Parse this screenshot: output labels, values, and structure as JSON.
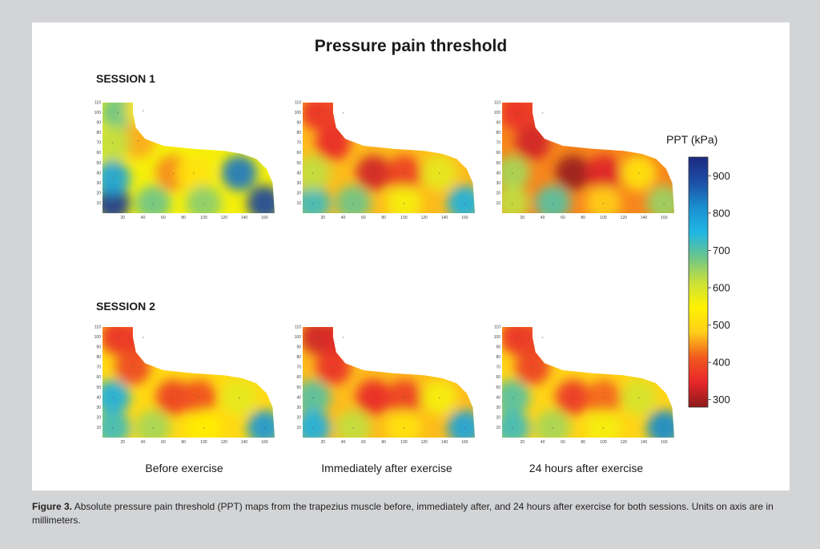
{
  "chart_data": {
    "type": "heatmap",
    "title": "Pressure pain threshold",
    "sessions": [
      "SESSION 1",
      "SESSION 2"
    ],
    "conditions": [
      "Before exercise",
      "Immediately after exercise",
      "24 hours after exercise"
    ],
    "x_ticks": [
      20,
      40,
      60,
      80,
      100,
      120,
      140,
      160
    ],
    "y_ticks": [
      10,
      20,
      30,
      40,
      50,
      60,
      70,
      80,
      90,
      100,
      110
    ],
    "colorbar": {
      "label": "PPT (kPa)",
      "ticks": [
        300,
        400,
        500,
        600,
        700,
        800,
        900
      ],
      "range": [
        280,
        950
      ],
      "colors": [
        "#8b1a1a",
        "#e8262a",
        "#f25a1e",
        "#ffcf1a",
        "#fff200",
        "#c9e03a",
        "#6cc58b",
        "#1fb6e3",
        "#1a8fd0",
        "#1d4fa6",
        "#1c2a80"
      ]
    },
    "maps": [
      {
        "session": "SESSION 1",
        "condition": "Before exercise",
        "base": 560,
        "points": [
          {
            "x": 10,
            "y": 10,
            "v": 920
          },
          {
            "x": 10,
            "y": 35,
            "v": 780
          },
          {
            "x": 15,
            "y": 100,
            "v": 680
          },
          {
            "x": 40,
            "y": 102,
            "v": 520
          },
          {
            "x": 35,
            "y": 72,
            "v": 460
          },
          {
            "x": 70,
            "y": 40,
            "v": 440
          },
          {
            "x": 90,
            "y": 40,
            "v": 520
          },
          {
            "x": 135,
            "y": 40,
            "v": 840
          },
          {
            "x": 160,
            "y": 10,
            "v": 900
          },
          {
            "x": 50,
            "y": 10,
            "v": 680
          },
          {
            "x": 100,
            "y": 10,
            "v": 660
          },
          {
            "x": 10,
            "y": 70,
            "v": 620
          }
        ]
      },
      {
        "session": "SESSION 1",
        "condition": "Immediately after exercise",
        "base": 470,
        "points": [
          {
            "x": 15,
            "y": 100,
            "v": 360
          },
          {
            "x": 40,
            "y": 100,
            "v": 380
          },
          {
            "x": 30,
            "y": 70,
            "v": 350
          },
          {
            "x": 70,
            "y": 40,
            "v": 330
          },
          {
            "x": 100,
            "y": 40,
            "v": 380
          },
          {
            "x": 10,
            "y": 10,
            "v": 720
          },
          {
            "x": 10,
            "y": 40,
            "v": 620
          },
          {
            "x": 50,
            "y": 10,
            "v": 680
          },
          {
            "x": 160,
            "y": 10,
            "v": 760
          },
          {
            "x": 135,
            "y": 40,
            "v": 580
          },
          {
            "x": 100,
            "y": 10,
            "v": 560
          }
        ]
      },
      {
        "session": "SESSION 1",
        "condition": "24 hours after exercise",
        "base": 440,
        "points": [
          {
            "x": 15,
            "y": 100,
            "v": 360
          },
          {
            "x": 40,
            "y": 100,
            "v": 380
          },
          {
            "x": 30,
            "y": 70,
            "v": 330
          },
          {
            "x": 70,
            "y": 40,
            "v": 290
          },
          {
            "x": 100,
            "y": 40,
            "v": 340
          },
          {
            "x": 10,
            "y": 40,
            "v": 640
          },
          {
            "x": 10,
            "y": 10,
            "v": 620
          },
          {
            "x": 50,
            "y": 10,
            "v": 700
          },
          {
            "x": 160,
            "y": 10,
            "v": 650
          },
          {
            "x": 135,
            "y": 40,
            "v": 520
          },
          {
            "x": 100,
            "y": 10,
            "v": 480
          }
        ]
      },
      {
        "session": "SESSION 2",
        "condition": "Before exercise",
        "base": 500,
        "points": [
          {
            "x": 15,
            "y": 100,
            "v": 360
          },
          {
            "x": 40,
            "y": 100,
            "v": 370
          },
          {
            "x": 30,
            "y": 70,
            "v": 390
          },
          {
            "x": 70,
            "y": 40,
            "v": 380
          },
          {
            "x": 95,
            "y": 40,
            "v": 400
          },
          {
            "x": 10,
            "y": 40,
            "v": 760
          },
          {
            "x": 10,
            "y": 10,
            "v": 720
          },
          {
            "x": 50,
            "y": 10,
            "v": 640
          },
          {
            "x": 160,
            "y": 10,
            "v": 800
          },
          {
            "x": 135,
            "y": 40,
            "v": 580
          },
          {
            "x": 100,
            "y": 10,
            "v": 540
          }
        ]
      },
      {
        "session": "SESSION 2",
        "condition": "Immediately after exercise",
        "base": 470,
        "points": [
          {
            "x": 15,
            "y": 100,
            "v": 330
          },
          {
            "x": 40,
            "y": 100,
            "v": 340
          },
          {
            "x": 30,
            "y": 70,
            "v": 360
          },
          {
            "x": 70,
            "y": 40,
            "v": 350
          },
          {
            "x": 100,
            "y": 40,
            "v": 380
          },
          {
            "x": 10,
            "y": 40,
            "v": 700
          },
          {
            "x": 10,
            "y": 10,
            "v": 760
          },
          {
            "x": 50,
            "y": 10,
            "v": 620
          },
          {
            "x": 160,
            "y": 10,
            "v": 780
          },
          {
            "x": 135,
            "y": 40,
            "v": 560
          },
          {
            "x": 100,
            "y": 10,
            "v": 520
          }
        ]
      },
      {
        "session": "SESSION 2",
        "condition": "24 hours after exercise",
        "base": 490,
        "points": [
          {
            "x": 15,
            "y": 100,
            "v": 360
          },
          {
            "x": 40,
            "y": 100,
            "v": 380
          },
          {
            "x": 30,
            "y": 70,
            "v": 380
          },
          {
            "x": 70,
            "y": 40,
            "v": 370
          },
          {
            "x": 100,
            "y": 40,
            "v": 420
          },
          {
            "x": 10,
            "y": 40,
            "v": 700
          },
          {
            "x": 10,
            "y": 10,
            "v": 720
          },
          {
            "x": 50,
            "y": 10,
            "v": 640
          },
          {
            "x": 160,
            "y": 10,
            "v": 820
          },
          {
            "x": 135,
            "y": 40,
            "v": 600
          },
          {
            "x": 100,
            "y": 10,
            "v": 560
          }
        ]
      }
    ]
  },
  "caption": {
    "label": "Figure 3.",
    "text": " Absolute pressure pain threshold (PPT) maps from the trapezius muscle before, immediately after, and 24 hours after exercise for both sessions. Units on axis are in millimeters."
  }
}
